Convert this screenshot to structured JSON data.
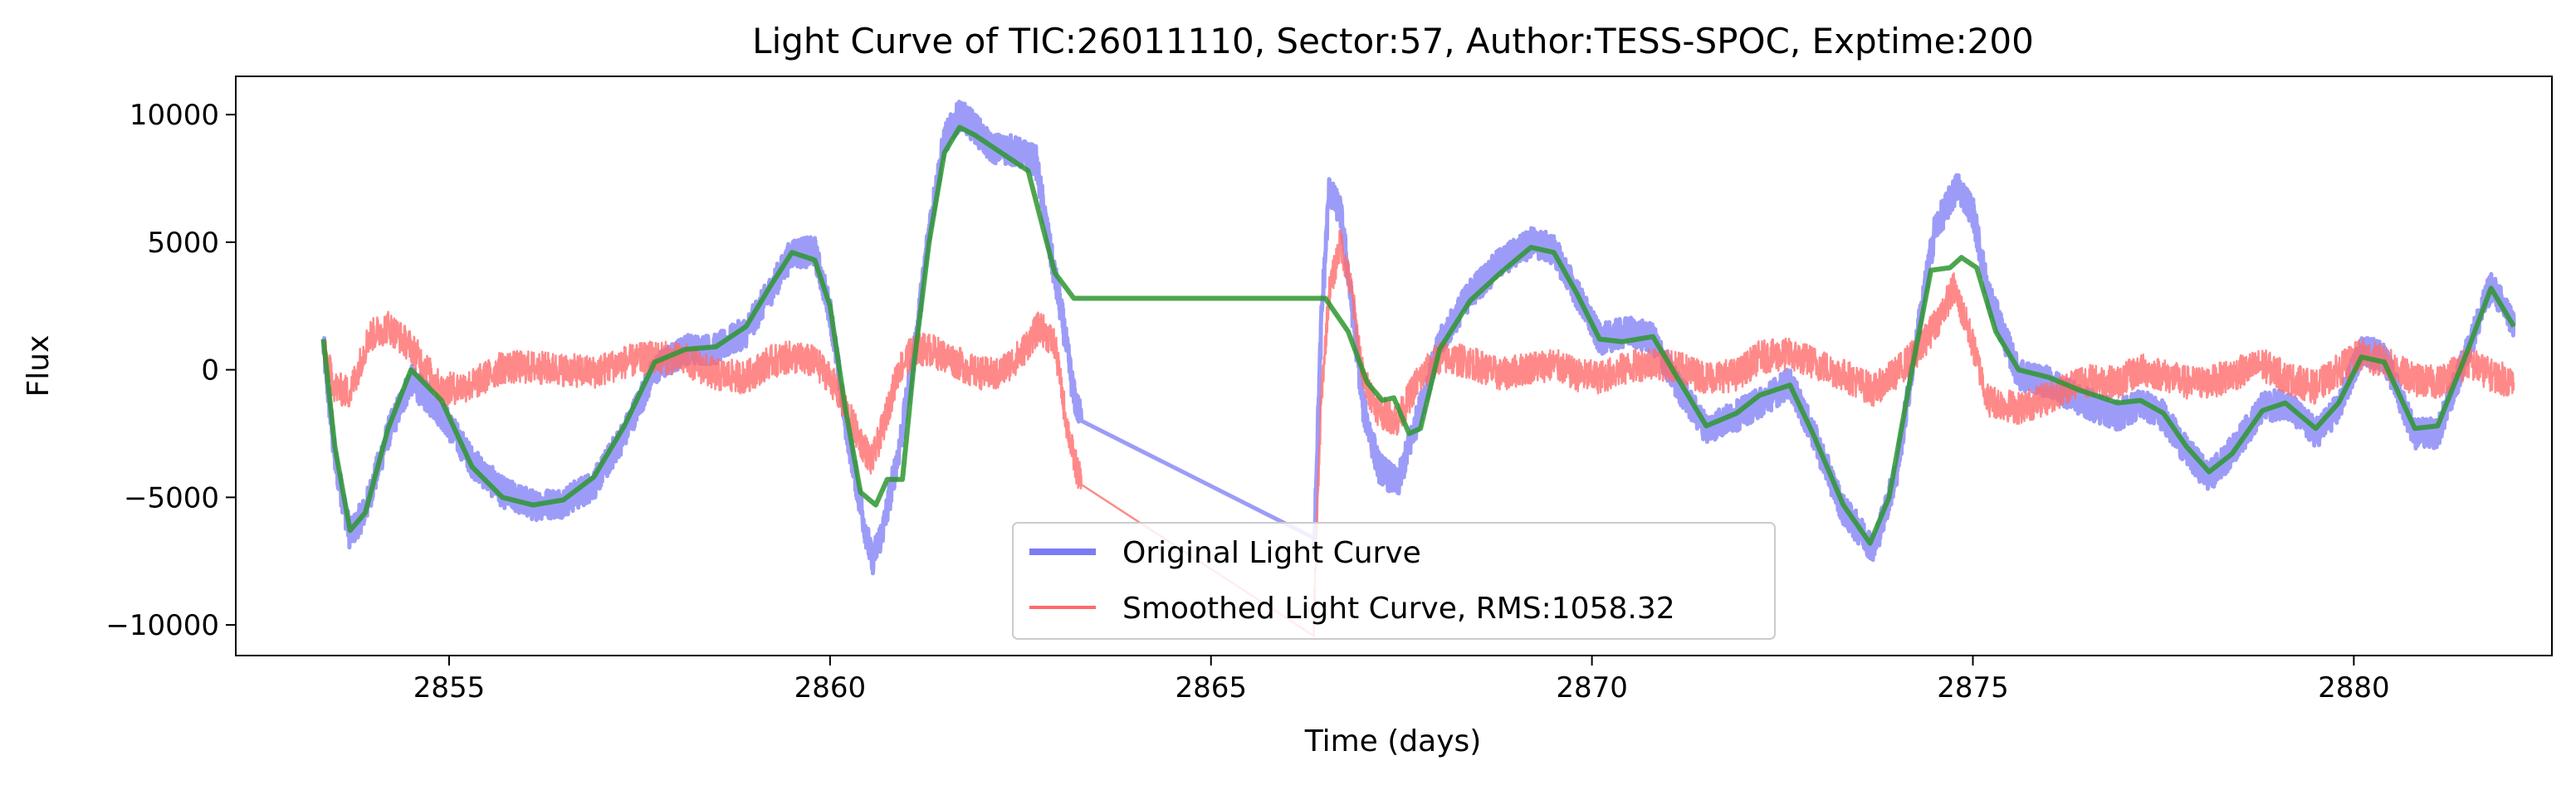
{
  "chart_data": {
    "type": "line",
    "title": "Light Curve of TIC:26011110, Sector:57, Author:TESS-SPOC, Exptime:200",
    "xlabel": "Time (days)",
    "ylabel": "Flux",
    "xlim": [
      2852.2,
      2882.6
    ],
    "ylim": [
      -11200,
      11500
    ],
    "xticks": [
      2855,
      2860,
      2865,
      2870,
      2875,
      2880
    ],
    "yticks": [
      -10000,
      -5000,
      0,
      5000,
      10000
    ],
    "xtick_labels": [
      "2855",
      "2860",
      "2865",
      "2870",
      "2875",
      "2880"
    ],
    "ytick_labels": [
      "−10000",
      "−5000",
      "0",
      "5000",
      "10000"
    ],
    "grid": false,
    "legend_placement": "lower-center",
    "series": [
      {
        "name": "Original Light Curve",
        "color": "#7b7bf5",
        "noise": 600,
        "points": [
          [
            2853.35,
            1000
          ],
          [
            2853.5,
            -3500
          ],
          [
            2853.7,
            -6500
          ],
          [
            2853.9,
            -5500
          ],
          [
            2854.2,
            -2500
          ],
          [
            2854.5,
            -400
          ],
          [
            2854.9,
            -1700
          ],
          [
            2855.3,
            -3600
          ],
          [
            2855.7,
            -4800
          ],
          [
            2856.1,
            -5300
          ],
          [
            2856.5,
            -5200
          ],
          [
            2856.9,
            -4500
          ],
          [
            2857.3,
            -2500
          ],
          [
            2857.7,
            0
          ],
          [
            2858.1,
            800
          ],
          [
            2858.5,
            800
          ],
          [
            2858.9,
            1500
          ],
          [
            2859.2,
            3000
          ],
          [
            2859.5,
            4600
          ],
          [
            2859.8,
            4600
          ],
          [
            2860.0,
            2300
          ],
          [
            2860.2,
            -2000
          ],
          [
            2860.4,
            -5300
          ],
          [
            2860.55,
            -7500
          ],
          [
            2860.7,
            -6200
          ],
          [
            2860.9,
            -3200
          ],
          [
            2861.1,
            500
          ],
          [
            2861.3,
            5500
          ],
          [
            2861.5,
            9000
          ],
          [
            2861.7,
            10000
          ],
          [
            2861.9,
            9500
          ],
          [
            2862.1,
            8700
          ],
          [
            2862.4,
            8600
          ],
          [
            2862.7,
            8200
          ],
          [
            2862.9,
            4500
          ],
          [
            2863.05,
            2000
          ],
          [
            2863.2,
            -1000
          ],
          [
            2863.3,
            -2000
          ],
          [
            2866.35,
            -7000
          ],
          [
            2866.45,
            2000
          ],
          [
            2866.55,
            7000
          ],
          [
            2866.7,
            6200
          ],
          [
            2866.85,
            2500
          ],
          [
            2867.0,
            -1500
          ],
          [
            2867.2,
            -3800
          ],
          [
            2867.45,
            -4500
          ],
          [
            2867.7,
            -2000
          ],
          [
            2868.0,
            1000
          ],
          [
            2868.4,
            3000
          ],
          [
            2868.8,
            4200
          ],
          [
            2869.2,
            5000
          ],
          [
            2869.5,
            4700
          ],
          [
            2869.8,
            3000
          ],
          [
            2870.1,
            1200
          ],
          [
            2870.5,
            1500
          ],
          [
            2870.8,
            1200
          ],
          [
            2871.1,
            -500
          ],
          [
            2871.5,
            -2300
          ],
          [
            2871.9,
            -1800
          ],
          [
            2872.2,
            -1300
          ],
          [
            2872.6,
            -500
          ],
          [
            2872.9,
            -2500
          ],
          [
            2873.3,
            -5500
          ],
          [
            2873.7,
            -7000
          ],
          [
            2874.0,
            -4000
          ],
          [
            2874.25,
            1000
          ],
          [
            2874.5,
            5500
          ],
          [
            2874.8,
            7200
          ],
          [
            2875.0,
            6200
          ],
          [
            2875.2,
            3000
          ],
          [
            2875.6,
            -200
          ],
          [
            2876.0,
            -500
          ],
          [
            2876.4,
            -1200
          ],
          [
            2876.9,
            -1800
          ],
          [
            2877.2,
            -1300
          ],
          [
            2877.5,
            -1800
          ],
          [
            2877.8,
            -3200
          ],
          [
            2878.1,
            -4200
          ],
          [
            2878.4,
            -3200
          ],
          [
            2878.8,
            -1500
          ],
          [
            2879.1,
            -1300
          ],
          [
            2879.5,
            -2500
          ],
          [
            2879.8,
            -1500
          ],
          [
            2880.1,
            800
          ],
          [
            2880.4,
            500
          ],
          [
            2880.8,
            -2500
          ],
          [
            2881.1,
            -2500
          ],
          [
            2881.5,
            800
          ],
          [
            2881.8,
            3300
          ],
          [
            2882.1,
            1800
          ]
        ]
      },
      {
        "name": "Smoothed Light Curve, RMS:1058.32",
        "color": "#ff6b6b",
        "noise": 650,
        "points": [
          [
            2853.35,
            800
          ],
          [
            2853.5,
            -700
          ],
          [
            2853.7,
            -900
          ],
          [
            2853.95,
            1300
          ],
          [
            2854.2,
            1700
          ],
          [
            2854.5,
            900
          ],
          [
            2854.9,
            -800
          ],
          [
            2855.3,
            -600
          ],
          [
            2855.7,
            100
          ],
          [
            2856.1,
            100
          ],
          [
            2856.5,
            0
          ],
          [
            2856.9,
            -100
          ],
          [
            2857.3,
            300
          ],
          [
            2857.7,
            500
          ],
          [
            2858.1,
            400
          ],
          [
            2858.5,
            -200
          ],
          [
            2858.9,
            -300
          ],
          [
            2859.2,
            300
          ],
          [
            2859.5,
            500
          ],
          [
            2859.8,
            300
          ],
          [
            2860.0,
            -300
          ],
          [
            2860.2,
            -1500
          ],
          [
            2860.4,
            -2800
          ],
          [
            2860.55,
            -3600
          ],
          [
            2860.7,
            -2200
          ],
          [
            2860.9,
            0
          ],
          [
            2861.1,
            800
          ],
          [
            2861.3,
            800
          ],
          [
            2861.6,
            400
          ],
          [
            2861.9,
            -100
          ],
          [
            2862.2,
            -200
          ],
          [
            2862.5,
            600
          ],
          [
            2862.75,
            1700
          ],
          [
            2862.95,
            1000
          ],
          [
            2863.1,
            -2000
          ],
          [
            2863.2,
            -3500
          ],
          [
            2863.3,
            -4500
          ],
          [
            2866.35,
            -9800
          ],
          [
            2866.45,
            -1000
          ],
          [
            2866.55,
            3000
          ],
          [
            2866.7,
            5000
          ],
          [
            2866.85,
            3000
          ],
          [
            2867.0,
            -400
          ],
          [
            2867.2,
            -1600
          ],
          [
            2867.45,
            -2000
          ],
          [
            2867.7,
            -500
          ],
          [
            2868.0,
            500
          ],
          [
            2868.4,
            300
          ],
          [
            2868.8,
            -200
          ],
          [
            2869.2,
            100
          ],
          [
            2869.5,
            200
          ],
          [
            2869.8,
            -200
          ],
          [
            2870.1,
            -300
          ],
          [
            2870.5,
            100
          ],
          [
            2870.8,
            300
          ],
          [
            2871.1,
            100
          ],
          [
            2871.5,
            -300
          ],
          [
            2871.9,
            -200
          ],
          [
            2872.2,
            500
          ],
          [
            2872.6,
            600
          ],
          [
            2872.9,
            300
          ],
          [
            2873.3,
            -200
          ],
          [
            2873.7,
            -800
          ],
          [
            2874.0,
            -100
          ],
          [
            2874.3,
            800
          ],
          [
            2874.55,
            2000
          ],
          [
            2874.75,
            3200
          ],
          [
            2874.95,
            1500
          ],
          [
            2875.2,
            -1200
          ],
          [
            2875.6,
            -1500
          ],
          [
            2876.0,
            -1100
          ],
          [
            2876.4,
            -400
          ],
          [
            2876.9,
            -500
          ],
          [
            2877.2,
            0
          ],
          [
            2877.5,
            -200
          ],
          [
            2877.8,
            -500
          ],
          [
            2878.1,
            -500
          ],
          [
            2878.4,
            -200
          ],
          [
            2878.8,
            200
          ],
          [
            2879.1,
            -300
          ],
          [
            2879.5,
            -700
          ],
          [
            2879.8,
            0
          ],
          [
            2880.1,
            600
          ],
          [
            2880.4,
            300
          ],
          [
            2880.8,
            -400
          ],
          [
            2881.1,
            -500
          ],
          [
            2881.5,
            300
          ],
          [
            2881.8,
            -200
          ],
          [
            2882.1,
            -500
          ]
        ]
      },
      {
        "name": "",
        "color": "#2e9630",
        "noise": 0,
        "points": [
          [
            2853.35,
            1200
          ],
          [
            2853.5,
            -3000
          ],
          [
            2853.7,
            -6300
          ],
          [
            2853.9,
            -5600
          ],
          [
            2854.2,
            -2300
          ],
          [
            2854.5,
            0
          ],
          [
            2854.9,
            -1200
          ],
          [
            2855.3,
            -3800
          ],
          [
            2855.7,
            -5000
          ],
          [
            2856.1,
            -5300
          ],
          [
            2856.5,
            -5100
          ],
          [
            2856.9,
            -4200
          ],
          [
            2857.3,
            -2200
          ],
          [
            2857.7,
            300
          ],
          [
            2858.1,
            800
          ],
          [
            2858.5,
            900
          ],
          [
            2858.9,
            1700
          ],
          [
            2859.2,
            3200
          ],
          [
            2859.5,
            4600
          ],
          [
            2859.8,
            4300
          ],
          [
            2860.0,
            2500
          ],
          [
            2860.2,
            -1500
          ],
          [
            2860.4,
            -4800
          ],
          [
            2860.6,
            -5300
          ],
          [
            2860.75,
            -4300
          ],
          [
            2860.95,
            -4300
          ],
          [
            2861.1,
            200
          ],
          [
            2861.3,
            5000
          ],
          [
            2861.5,
            8500
          ],
          [
            2861.7,
            9500
          ],
          [
            2861.9,
            9200
          ],
          [
            2862.1,
            8800
          ],
          [
            2862.4,
            8200
          ],
          [
            2862.6,
            7800
          ],
          [
            2862.8,
            5500
          ],
          [
            2862.95,
            3800
          ],
          [
            2863.2,
            2800
          ],
          [
            2866.5,
            2800
          ],
          [
            2866.8,
            1500
          ],
          [
            2867.05,
            -500
          ],
          [
            2867.25,
            -1200
          ],
          [
            2867.4,
            -1100
          ],
          [
            2867.6,
            -2500
          ],
          [
            2867.75,
            -2300
          ],
          [
            2868.0,
            800
          ],
          [
            2868.4,
            2700
          ],
          [
            2868.8,
            3800
          ],
          [
            2869.2,
            4800
          ],
          [
            2869.5,
            4600
          ],
          [
            2869.8,
            3000
          ],
          [
            2870.1,
            1200
          ],
          [
            2870.4,
            1100
          ],
          [
            2870.8,
            1300
          ],
          [
            2871.1,
            -200
          ],
          [
            2871.5,
            -2200
          ],
          [
            2871.9,
            -1700
          ],
          [
            2872.2,
            -1000
          ],
          [
            2872.6,
            -600
          ],
          [
            2872.9,
            -2500
          ],
          [
            2873.3,
            -5300
          ],
          [
            2873.65,
            -6800
          ],
          [
            2873.9,
            -5000
          ],
          [
            2874.2,
            0
          ],
          [
            2874.45,
            3900
          ],
          [
            2874.7,
            4000
          ],
          [
            2874.85,
            4400
          ],
          [
            2875.05,
            4000
          ],
          [
            2875.3,
            1500
          ],
          [
            2875.6,
            0
          ],
          [
            2876.0,
            -300
          ],
          [
            2876.4,
            -800
          ],
          [
            2876.9,
            -1300
          ],
          [
            2877.2,
            -1200
          ],
          [
            2877.5,
            -1700
          ],
          [
            2877.8,
            -3000
          ],
          [
            2878.1,
            -4000
          ],
          [
            2878.4,
            -3300
          ],
          [
            2878.8,
            -1600
          ],
          [
            2879.1,
            -1300
          ],
          [
            2879.5,
            -2300
          ],
          [
            2879.8,
            -1300
          ],
          [
            2880.1,
            500
          ],
          [
            2880.4,
            300
          ],
          [
            2880.8,
            -2300
          ],
          [
            2881.1,
            -2200
          ],
          [
            2881.5,
            800
          ],
          [
            2881.8,
            3200
          ],
          [
            2882.1,
            1700
          ]
        ]
      }
    ]
  }
}
